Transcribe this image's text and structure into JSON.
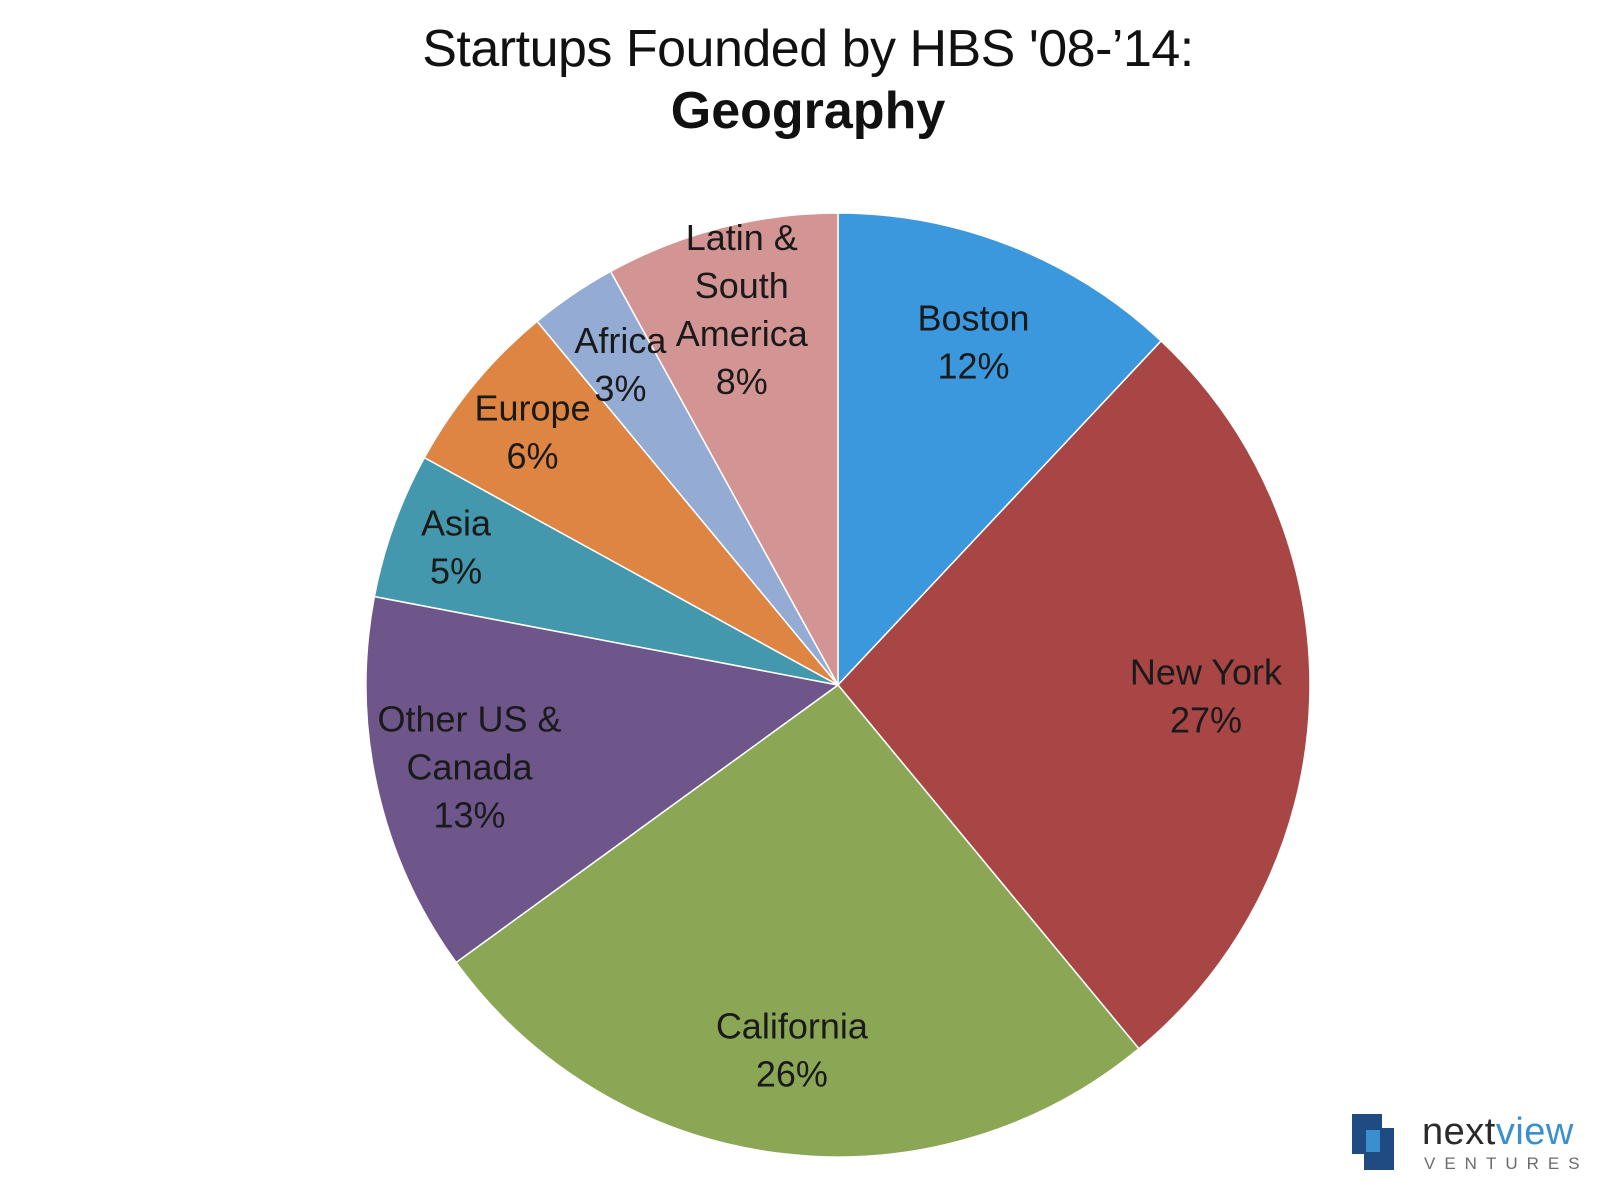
{
  "chart_data": {
    "type": "pie",
    "title": "Startups Founded by HBS '08-’14:",
    "subtitle": "Geography",
    "slices": [
      {
        "label_lines": [
          "Boston"
        ],
        "value": 12,
        "value_label": "12%",
        "color": "#3b98dc"
      },
      {
        "label_lines": [
          "New York"
        ],
        "value": 27,
        "value_label": "27%",
        "color": "#a84646"
      },
      {
        "label_lines": [
          "California"
        ],
        "value": 26,
        "value_label": "26%",
        "color": "#8ba756"
      },
      {
        "label_lines": [
          "Other US &",
          "Canada"
        ],
        "value": 13,
        "value_label": "13%",
        "color": "#6e568b"
      },
      {
        "label_lines": [
          "Asia"
        ],
        "value": 5,
        "value_label": "5%",
        "color": "#4398ad"
      },
      {
        "label_lines": [
          "Europe"
        ],
        "value": 6,
        "value_label": "6%",
        "color": "#de8543"
      },
      {
        "label_lines": [
          "Africa"
        ],
        "value": 3,
        "value_label": "3%",
        "color": "#94abd3"
      },
      {
        "label_lines": [
          "Latin &",
          "South",
          "America"
        ],
        "value": 8,
        "value_label": "8%",
        "color": "#d39594"
      }
    ]
  },
  "logo": {
    "word_main": "next",
    "word_accent": "view",
    "sub": "VENTURES",
    "colors": {
      "dark": "#1f4a82",
      "light": "#3a8fd0"
    }
  }
}
